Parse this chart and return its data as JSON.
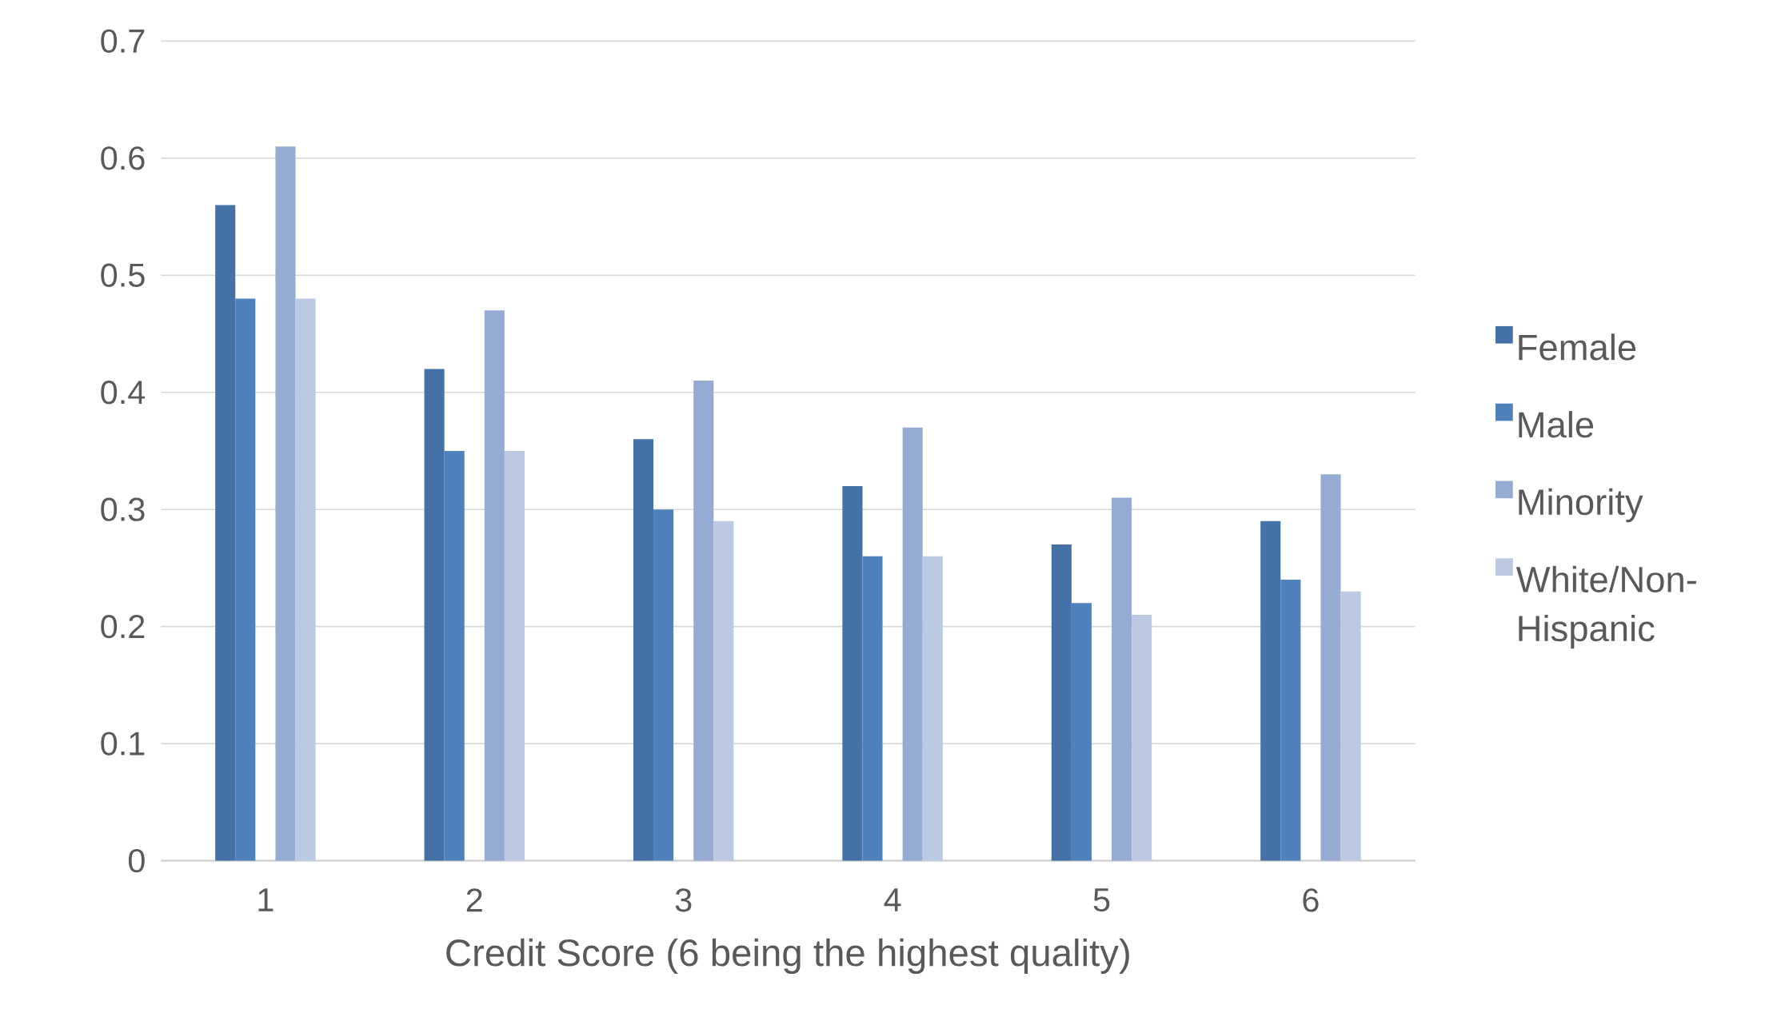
{
  "chart_data": {
    "type": "bar",
    "xlabel": "Credit Score (6 being the highest quality)",
    "categories": [
      "1",
      "2",
      "3",
      "4",
      "5",
      "6"
    ],
    "series": [
      {
        "name": "Female",
        "color": "#4472a8",
        "values": [
          0.56,
          0.42,
          0.36,
          0.32,
          0.27,
          0.29
        ]
      },
      {
        "name": "Male",
        "color": "#4f81bd",
        "values": [
          0.48,
          0.35,
          0.3,
          0.26,
          0.22,
          0.24
        ]
      },
      {
        "name": "Minority",
        "color": "#95abd3",
        "values": [
          0.61,
          0.47,
          0.41,
          0.37,
          0.31,
          0.33
        ]
      },
      {
        "name": "White/Non-Hispanic",
        "color": "#bcc9e2",
        "values": [
          0.48,
          0.35,
          0.29,
          0.26,
          0.21,
          0.23
        ]
      }
    ],
    "ylim": [
      0,
      0.7
    ],
    "yticks": [
      0,
      0.1,
      0.2,
      0.3,
      0.4,
      0.5,
      0.6,
      0.7
    ],
    "grid": "y",
    "legend": "right"
  }
}
